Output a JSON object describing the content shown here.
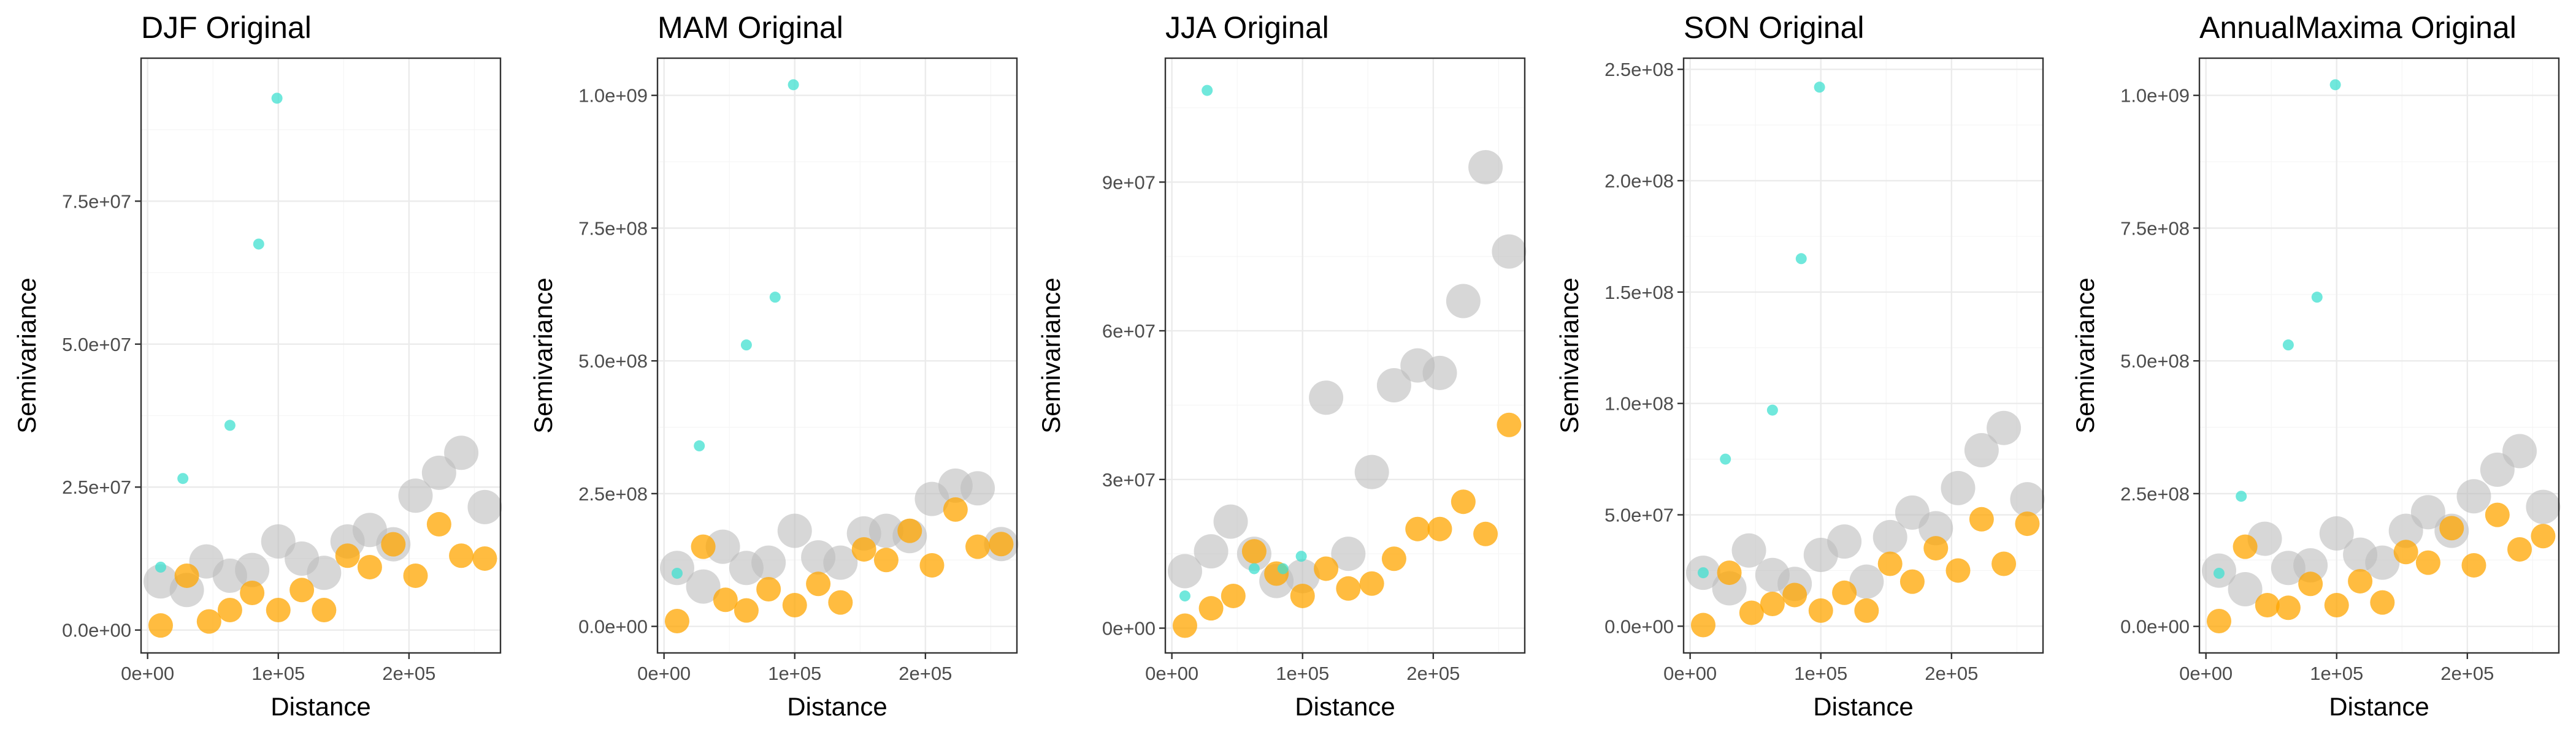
{
  "chart_data": [
    {
      "type": "scatter",
      "title": "DJF Original",
      "xlabel": "Distance",
      "ylabel": "Semivariance",
      "xlim": [
        -5000,
        270000
      ],
      "ylim": [
        -4000000,
        100000000
      ],
      "xticks": [
        0,
        100000,
        200000
      ],
      "xtick_labels": [
        "0e+00",
        "1e+05",
        "2e+05"
      ],
      "yticks": [
        0,
        25000000,
        50000000,
        75000000
      ],
      "ytick_labels": [
        "0.0e+00",
        "2.5e+07",
        "5.0e+07",
        "7.5e+07"
      ],
      "grid": true,
      "series": [
        {
          "color": "#40e0d0",
          "size_class": "small",
          "points": [
            [
              10000,
              11000000
            ],
            [
              27000,
              26500000
            ],
            [
              63000,
              35800000
            ],
            [
              85000,
              67500000
            ],
            [
              99000,
              93000000
            ]
          ]
        },
        {
          "color": "#bdbdbd",
          "size_class": "large",
          "points": [
            [
              10000,
              8500000
            ],
            [
              30000,
              7000000
            ],
            [
              45000,
              12000000
            ],
            [
              63000,
              9500000
            ],
            [
              80000,
              10500000
            ],
            [
              100000,
              15500000
            ],
            [
              118000,
              12500000
            ],
            [
              135000,
              10000000
            ],
            [
              153000,
              15500000
            ],
            [
              170000,
              17500000
            ],
            [
              188000,
              15000000
            ],
            [
              205000,
              23500000
            ],
            [
              223000,
              27500000
            ],
            [
              240000,
              31000000
            ],
            [
              258000,
              21500000
            ]
          ]
        },
        {
          "color": "#ffa500",
          "size_class": "medium",
          "points": [
            [
              10000,
              800000
            ],
            [
              30000,
              9500000
            ],
            [
              47000,
              1500000
            ],
            [
              63000,
              3500000
            ],
            [
              80000,
              6500000
            ],
            [
              100000,
              3500000
            ],
            [
              118000,
              7000000
            ],
            [
              135000,
              3500000
            ],
            [
              153000,
              13000000
            ],
            [
              170000,
              11000000
            ],
            [
              188000,
              15000000
            ],
            [
              205000,
              9500000
            ],
            [
              223000,
              18500000
            ],
            [
              240000,
              13000000
            ],
            [
              258000,
              12500000
            ]
          ]
        }
      ]
    },
    {
      "type": "scatter",
      "title": "MAM Original",
      "xlabel": "Distance",
      "ylabel": "Semivariance",
      "xlim": [
        -5000,
        270000
      ],
      "ylim": [
        -50000000,
        1070000000
      ],
      "xticks": [
        0,
        100000,
        200000
      ],
      "xtick_labels": [
        "0e+00",
        "1e+05",
        "2e+05"
      ],
      "yticks": [
        0,
        250000000,
        500000000,
        750000000,
        1000000000
      ],
      "ytick_labels": [
        "0.0e+00",
        "2.5e+08",
        "5.0e+08",
        "7.5e+08",
        "1.0e+09"
      ],
      "grid": true,
      "series": [
        {
          "color": "#40e0d0",
          "size_class": "small",
          "points": [
            [
              10000,
              100000000
            ],
            [
              27000,
              340000000
            ],
            [
              63000,
              530000000
            ],
            [
              85000,
              620000000
            ],
            [
              99000,
              1020000000
            ]
          ]
        },
        {
          "color": "#bdbdbd",
          "size_class": "large",
          "points": [
            [
              10000,
              110000000
            ],
            [
              30000,
              75000000
            ],
            [
              45000,
              150000000
            ],
            [
              63000,
              110000000
            ],
            [
              80000,
              120000000
            ],
            [
              100000,
              180000000
            ],
            [
              118000,
              130000000
            ],
            [
              135000,
              120000000
            ],
            [
              153000,
              175000000
            ],
            [
              170000,
              180000000
            ],
            [
              188000,
              170000000
            ],
            [
              205000,
              240000000
            ],
            [
              223000,
              265000000
            ],
            [
              240000,
              260000000
            ],
            [
              258000,
              155000000
            ]
          ]
        },
        {
          "color": "#ffa500",
          "size_class": "medium",
          "points": [
            [
              10000,
              10000000
            ],
            [
              30000,
              150000000
            ],
            [
              47000,
              50000000
            ],
            [
              63000,
              30000000
            ],
            [
              80000,
              70000000
            ],
            [
              100000,
              40000000
            ],
            [
              118000,
              80000000
            ],
            [
              135000,
              45000000
            ],
            [
              153000,
              145000000
            ],
            [
              170000,
              125000000
            ],
            [
              188000,
              180000000
            ],
            [
              205000,
              115000000
            ],
            [
              223000,
              220000000
            ],
            [
              240000,
              150000000
            ],
            [
              258000,
              155000000
            ]
          ]
        }
      ]
    },
    {
      "type": "scatter",
      "title": "JJA Original",
      "xlabel": "Distance",
      "ylabel": "Semivariance",
      "xlim": [
        -5000,
        270000
      ],
      "ylim": [
        -5000000,
        115000000
      ],
      "xticks": [
        0,
        100000,
        200000
      ],
      "xtick_labels": [
        "0e+00",
        "1e+05",
        "2e+05"
      ],
      "yticks": [
        0,
        30000000,
        60000000,
        90000000
      ],
      "ytick_labels": [
        "0e+00",
        "3e+07",
        "6e+07",
        "9e+07"
      ],
      "grid": true,
      "series": [
        {
          "color": "#40e0d0",
          "size_class": "small",
          "points": [
            [
              10000,
              6500000
            ],
            [
              27000,
              108500000
            ],
            [
              63000,
              12000000
            ],
            [
              85000,
              12000000
            ],
            [
              99000,
              14500000
            ]
          ]
        },
        {
          "color": "#bdbdbd",
          "size_class": "large",
          "points": [
            [
              10000,
              11500000
            ],
            [
              30000,
              15500000
            ],
            [
              45000,
              21500000
            ],
            [
              63000,
              15000000
            ],
            [
              80000,
              9500000
            ],
            [
              100000,
              10500000
            ],
            [
              118000,
              46500000
            ],
            [
              135000,
              15000000
            ],
            [
              153000,
              31500000
            ],
            [
              170000,
              49000000
            ],
            [
              188000,
              53000000
            ],
            [
              205000,
              51500000
            ],
            [
              223000,
              66000000
            ],
            [
              240000,
              93000000
            ],
            [
              258000,
              76000000
            ]
          ]
        },
        {
          "color": "#ffa500",
          "size_class": "medium",
          "points": [
            [
              10000,
              500000
            ],
            [
              30000,
              4000000
            ],
            [
              47000,
              6500000
            ],
            [
              63000,
              15500000
            ],
            [
              80000,
              11000000
            ],
            [
              100000,
              6500000
            ],
            [
              118000,
              12000000
            ],
            [
              135000,
              8000000
            ],
            [
              153000,
              9000000
            ],
            [
              170000,
              14000000
            ],
            [
              188000,
              20000000
            ],
            [
              205000,
              20000000
            ],
            [
              223000,
              25500000
            ],
            [
              240000,
              19000000
            ],
            [
              258000,
              41000000
            ]
          ]
        }
      ]
    },
    {
      "type": "scatter",
      "title": "SON Original",
      "xlabel": "Distance",
      "ylabel": "Semivariance",
      "xlim": [
        -5000,
        270000
      ],
      "ylim": [
        -12000000,
        255000000
      ],
      "xticks": [
        0,
        100000,
        200000
      ],
      "xtick_labels": [
        "0e+00",
        "1e+05",
        "2e+05"
      ],
      "yticks": [
        0,
        50000000,
        100000000,
        150000000,
        200000000,
        250000000
      ],
      "ytick_labels": [
        "0.0e+00",
        "5.0e+07",
        "1.0e+08",
        "1.5e+08",
        "2.0e+08",
        "2.5e+08"
      ],
      "grid": true,
      "series": [
        {
          "color": "#40e0d0",
          "size_class": "small",
          "points": [
            [
              10000,
              24000000
            ],
            [
              27000,
              75000000
            ],
            [
              63000,
              97000000
            ],
            [
              85000,
              165000000
            ],
            [
              99000,
              242000000
            ]
          ]
        },
        {
          "color": "#bdbdbd",
          "size_class": "large",
          "points": [
            [
              10000,
              24000000
            ],
            [
              30000,
              17000000
            ],
            [
              45000,
              34000000
            ],
            [
              63000,
              23000000
            ],
            [
              80000,
              19000000
            ],
            [
              100000,
              32000000
            ],
            [
              118000,
              38000000
            ],
            [
              135000,
              20000000
            ],
            [
              153000,
              40000000
            ],
            [
              170000,
              51000000
            ],
            [
              188000,
              44000000
            ],
            [
              205000,
              62000000
            ],
            [
              223000,
              79000000
            ],
            [
              240000,
              89000000
            ],
            [
              258000,
              57000000
            ]
          ]
        },
        {
          "color": "#ffa500",
          "size_class": "medium",
          "points": [
            [
              10000,
              500000
            ],
            [
              30000,
              24000000
            ],
            [
              47000,
              6000000
            ],
            [
              63000,
              10000000
            ],
            [
              80000,
              14000000
            ],
            [
              100000,
              7000000
            ],
            [
              118000,
              15000000
            ],
            [
              135000,
              7000000
            ],
            [
              153000,
              28000000
            ],
            [
              170000,
              20000000
            ],
            [
              188000,
              35000000
            ],
            [
              205000,
              25000000
            ],
            [
              223000,
              48000000
            ],
            [
              240000,
              28000000
            ],
            [
              258000,
              46000000
            ]
          ]
        }
      ]
    },
    {
      "type": "scatter",
      "title": "AnnualMaxima Original",
      "xlabel": "Distance",
      "ylabel": "Semivariance",
      "xlim": [
        -5000,
        270000
      ],
      "ylim": [
        -50000000,
        1070000000
      ],
      "xticks": [
        0,
        100000,
        200000
      ],
      "xtick_labels": [
        "0e+00",
        "1e+05",
        "2e+05"
      ],
      "yticks": [
        0,
        250000000,
        500000000,
        750000000,
        1000000000
      ],
      "ytick_labels": [
        "0.0e+00",
        "2.5e+08",
        "5.0e+08",
        "7.5e+08",
        "1.0e+09"
      ],
      "grid": true,
      "series": [
        {
          "color": "#40e0d0",
          "size_class": "small",
          "points": [
            [
              10000,
              100000000
            ],
            [
              27000,
              245000000
            ],
            [
              63000,
              530000000
            ],
            [
              85000,
              620000000
            ],
            [
              99000,
              1020000000
            ]
          ]
        },
        {
          "color": "#bdbdbd",
          "size_class": "large",
          "points": [
            [
              10000,
              105000000
            ],
            [
              30000,
              70000000
            ],
            [
              45000,
              165000000
            ],
            [
              63000,
              110000000
            ],
            [
              80000,
              115000000
            ],
            [
              100000,
              175000000
            ],
            [
              118000,
              135000000
            ],
            [
              135000,
              120000000
            ],
            [
              153000,
              180000000
            ],
            [
              170000,
              215000000
            ],
            [
              188000,
              180000000
            ],
            [
              205000,
              245000000
            ],
            [
              223000,
              295000000
            ],
            [
              240000,
              330000000
            ],
            [
              258000,
              225000000
            ]
          ]
        },
        {
          "color": "#ffa500",
          "size_class": "medium",
          "points": [
            [
              10000,
              10000000
            ],
            [
              30000,
              150000000
            ],
            [
              47000,
              40000000
            ],
            [
              63000,
              35000000
            ],
            [
              80000,
              80000000
            ],
            [
              100000,
              40000000
            ],
            [
              118000,
              85000000
            ],
            [
              135000,
              45000000
            ],
            [
              153000,
              140000000
            ],
            [
              170000,
              120000000
            ],
            [
              188000,
              185000000
            ],
            [
              205000,
              115000000
            ],
            [
              223000,
              210000000
            ],
            [
              240000,
              145000000
            ],
            [
              258000,
              170000000
            ]
          ]
        }
      ]
    }
  ]
}
